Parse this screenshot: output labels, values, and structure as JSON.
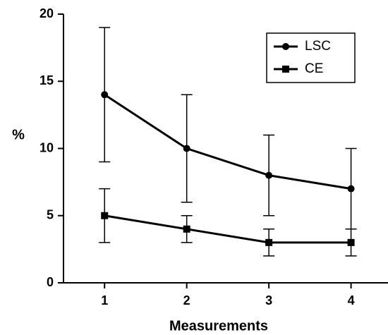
{
  "chart_data": {
    "type": "line",
    "x_label": "Measurements",
    "y_label": "%",
    "x": [
      1,
      2,
      3,
      4
    ],
    "series": [
      {
        "name": "LSC",
        "color": "#000000",
        "marker": "circle",
        "values": [
          14,
          10,
          8,
          7
        ],
        "errors": [
          5,
          4,
          3,
          3
        ]
      },
      {
        "name": "CE",
        "color": "#000000",
        "marker": "square",
        "values": [
          5,
          4,
          3,
          3
        ],
        "errors": [
          2,
          1,
          1,
          1
        ]
      }
    ],
    "xlim": [
      0.5,
      4.45
    ],
    "xticks": [
      1,
      2,
      3,
      4
    ],
    "ylim": [
      0,
      20
    ],
    "yticks": [
      0,
      5,
      10,
      15,
      20
    ],
    "grid": false,
    "legend": "upper right"
  }
}
